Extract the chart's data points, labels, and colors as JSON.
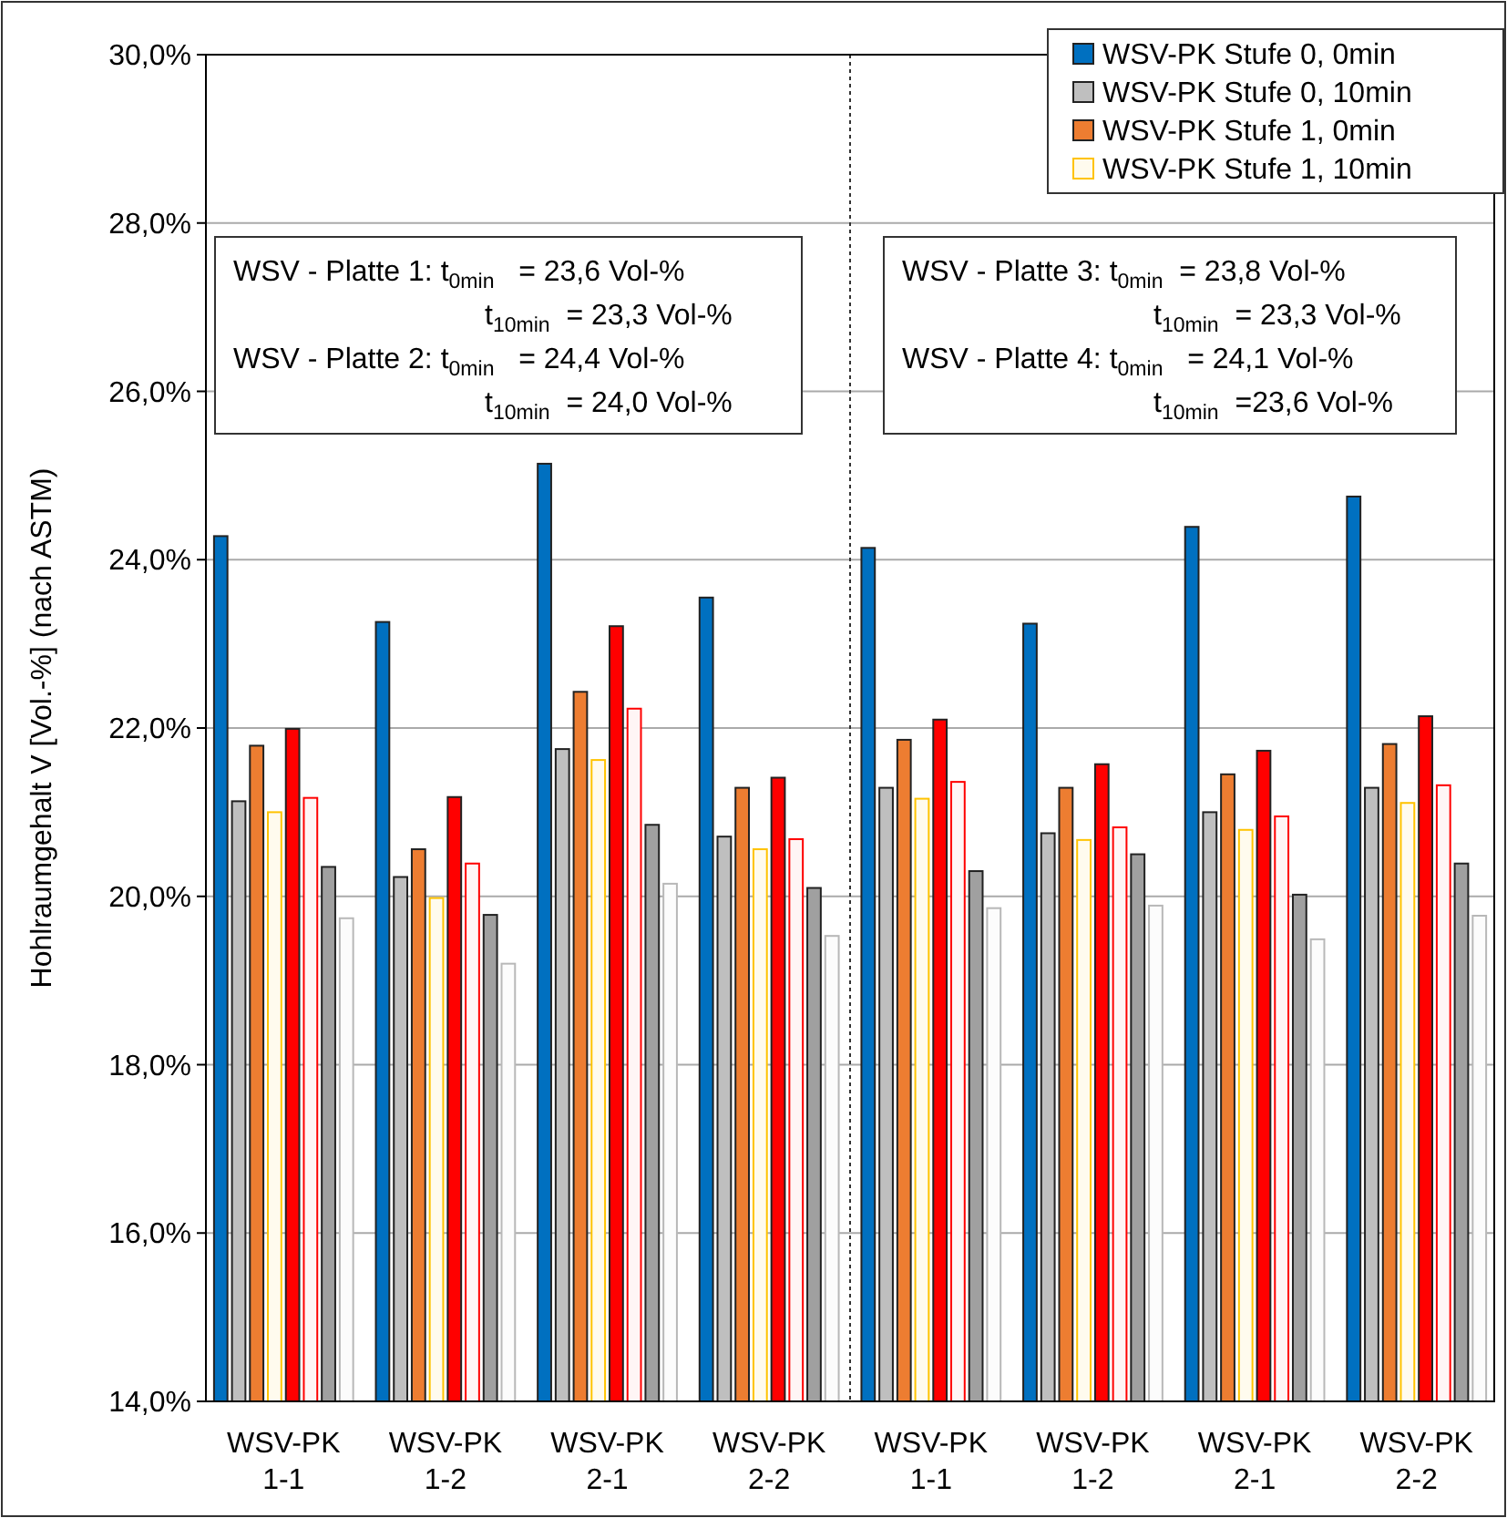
{
  "chart_data": {
    "type": "bar",
    "categories": [
      "WSV-PK\n1-1",
      "WSV-PK\n1-2",
      "WSV-PK\n2-1",
      "WSV-PK\n2-2",
      "WSV-PK\n1-1",
      "WSV-PK\n1-2",
      "WSV-PK\n2-1",
      "WSV-PK\n2-2"
    ],
    "ylabel": "Hohlraumgehalt V [Vol.-%] (nach ASTM)",
    "ylim": [
      14,
      30
    ],
    "yticks": [
      {
        "value": 14,
        "label": "14,0%"
      },
      {
        "value": 16,
        "label": "16,0%"
      },
      {
        "value": 18,
        "label": "18,0%"
      },
      {
        "value": 20,
        "label": "20,0%"
      },
      {
        "value": 22,
        "label": "22,0%"
      },
      {
        "value": 24,
        "label": "24,0%"
      },
      {
        "value": 26,
        "label": "26,0%"
      },
      {
        "value": 28,
        "label": "28,0%"
      },
      {
        "value": 30,
        "label": "30,0%"
      }
    ],
    "grid": "y",
    "legend": "top right",
    "series": [
      {
        "name": "WSV-PK Stufe 0, 0min",
        "color": "#0070c0",
        "values": [
          24.28,
          23.26,
          25.14,
          23.55,
          24.14,
          23.24,
          24.39,
          24.75
        ]
      },
      {
        "name": "WSV-PK Stufe 0, 10min",
        "color": "#bfbfbf",
        "values": [
          21.13,
          20.23,
          21.75,
          20.71,
          21.29,
          20.75,
          21.0,
          21.29
        ]
      },
      {
        "name": "WSV-PK Stufe 1, 0min",
        "color": "#ed7d31",
        "values": [
          21.79,
          20.56,
          22.43,
          21.29,
          21.86,
          21.29,
          21.45,
          21.81
        ]
      },
      {
        "name": "WSV-PK Stufe 1, 10min",
        "color": "#fffbee",
        "values": [
          21.0,
          19.98,
          21.62,
          20.56,
          21.16,
          20.67,
          20.79,
          21.11
        ]
      },
      {
        "color": "#ff0000",
        "values": [
          21.99,
          21.18,
          23.21,
          21.41,
          22.1,
          21.57,
          21.73,
          22.14
        ]
      },
      {
        "color": "#fff5f5",
        "values": [
          21.17,
          20.39,
          22.23,
          20.68,
          21.36,
          20.82,
          20.95,
          21.32
        ]
      },
      {
        "color": "#a0a0a0",
        "values": [
          20.35,
          19.78,
          20.85,
          20.1,
          20.3,
          20.5,
          20.02,
          20.39
        ]
      },
      {
        "color": "#fcfcfc",
        "values": [
          19.74,
          19.2,
          20.15,
          19.53,
          19.86,
          19.89,
          19.49,
          19.77
        ]
      }
    ],
    "annotations": [
      "WSV - Platte 1: t$_{0min}$  = 23,6 Vol-%\nt$_{10min}$ = 23,3 Vol-%\nWSV - Platte 2: t$_{0min}$  = 24,4 Vol-%\nt$_{10min}$ = 24,0 Vol-%",
      "WSV - Platte 3: t$_{0min}$ = 23,8 Vol-%\nt$_{10min}$ = 23,3 Vol-%\nWSV - Platte 4: t$_{0min}$  = 24,1 Vol-%\nt$_{10min}$ =23,6 Vol-%"
    ]
  }
}
